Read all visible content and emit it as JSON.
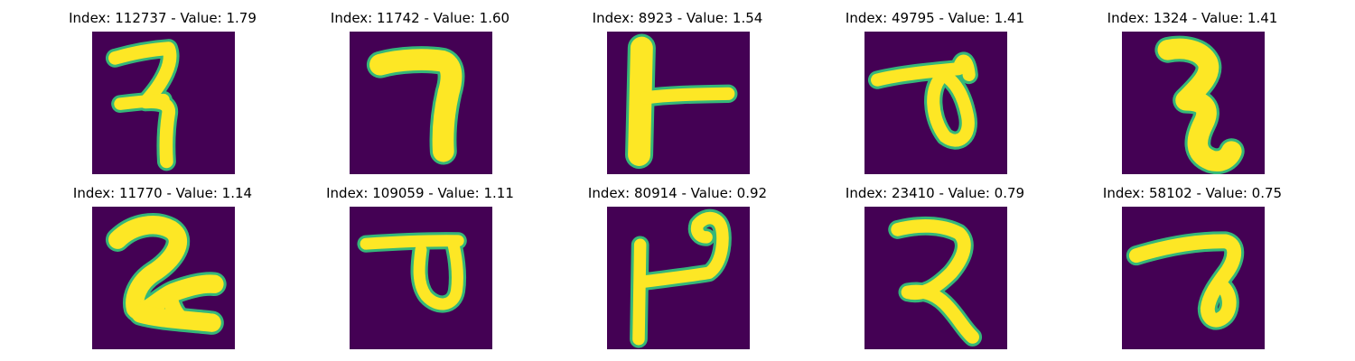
{
  "panels": [
    {
      "title": "Index: 112737 - Value: 1.79",
      "glyph": "hook-three"
    },
    {
      "title": "Index: 11742 - Value: 1.60",
      "glyph": "seven-bend"
    },
    {
      "title": "Index: 8923 - Value: 1.54",
      "glyph": "stem-bar"
    },
    {
      "title": "Index: 49795 - Value: 1.41",
      "glyph": "loop-nine"
    },
    {
      "title": "Index: 1324 - Value: 1.41",
      "glyph": "thick-two"
    },
    {
      "title": "Index: 11770 - Value: 1.14",
      "glyph": "curl-two"
    },
    {
      "title": "Index: 109059 - Value: 1.11",
      "glyph": "loop-bar"
    },
    {
      "title": "Index: 80914 - Value: 0.92",
      "glyph": "stem-hook"
    },
    {
      "title": "Index: 23410 - Value: 0.79",
      "glyph": "two-tail"
    },
    {
      "title": "Index: 58102 - Value: 0.75",
      "glyph": "loop-seven"
    }
  ],
  "colors": {
    "background": "#440154",
    "stroke": "#fde725",
    "edge": "#35b779",
    "title": "#000000"
  }
}
